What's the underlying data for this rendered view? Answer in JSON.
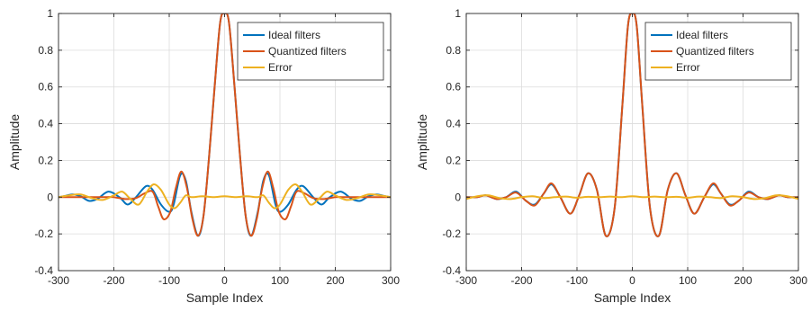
{
  "colors": {
    "ideal": "#0072BD",
    "quantized": "#D95319",
    "error": "#EDB120",
    "grid": "#dcdcdc",
    "axis": "#262626"
  },
  "chart_data": [
    {
      "type": "line",
      "xlabel": "Sample Index",
      "ylabel": "Amplitude",
      "xlim": [
        -300,
        300
      ],
      "ylim": [
        -0.4,
        1
      ],
      "xticks": [
        -300,
        -200,
        -100,
        0,
        100,
        200,
        300
      ],
      "yticks": [
        -0.4,
        -0.2,
        0,
        0.2,
        0.4,
        0.6,
        0.8,
        1
      ],
      "grid": true,
      "legend_position": "top-right",
      "series": [
        {
          "name": "Ideal filters",
          "color": "#0072BD",
          "x": [
            -300,
            -290,
            -275,
            -260,
            -245,
            -230,
            -210,
            -190,
            -175,
            -160,
            -142,
            -130,
            -115,
            -100,
            -92,
            -80,
            -70,
            -60,
            -48,
            -38,
            -28,
            -18,
            -8,
            0,
            8,
            18,
            28,
            38,
            48,
            60,
            70,
            80,
            92,
            100,
            115,
            130,
            142,
            160,
            175,
            190,
            210,
            230,
            245,
            260,
            275,
            290,
            300
          ],
          "y": [
            0.0,
            0.005,
            0.015,
            0.005,
            -0.02,
            -0.01,
            0.03,
            0.0,
            -0.04,
            0.0,
            0.06,
            0.04,
            -0.04,
            -0.08,
            -0.04,
            0.12,
            0.09,
            -0.08,
            -0.21,
            -0.1,
            0.22,
            0.6,
            0.95,
            1.0,
            0.95,
            0.6,
            0.22,
            -0.1,
            -0.21,
            -0.08,
            0.09,
            0.12,
            -0.04,
            -0.08,
            -0.04,
            0.04,
            0.06,
            0.0,
            -0.04,
            0.0,
            0.03,
            -0.01,
            -0.02,
            0.005,
            0.015,
            0.005,
            0.0
          ]
        },
        {
          "name": "Quantized filters",
          "color": "#D95319",
          "x": [
            -300,
            -250,
            -220,
            -200,
            -180,
            -160,
            -145,
            -130,
            -120,
            -110,
            -98,
            -88,
            -78,
            -68,
            -58,
            -48,
            -38,
            -28,
            -18,
            -8,
            0,
            8,
            18,
            28,
            38,
            48,
            58,
            68,
            78,
            88,
            98,
            110,
            120,
            130,
            145,
            160,
            180,
            200,
            220,
            250,
            300
          ],
          "y": [
            0.0,
            0.0,
            0.0,
            0.0,
            -0.01,
            -0.005,
            0.02,
            0.03,
            -0.05,
            -0.12,
            -0.08,
            0.05,
            0.14,
            0.05,
            -0.12,
            -0.21,
            -0.1,
            0.22,
            0.6,
            0.95,
            1.0,
            0.95,
            0.6,
            0.22,
            -0.1,
            -0.21,
            -0.12,
            0.05,
            0.14,
            0.05,
            -0.08,
            -0.12,
            -0.05,
            0.03,
            0.02,
            -0.005,
            -0.01,
            0.0,
            0.0,
            0.0,
            0.0
          ]
        },
        {
          "name": "Error",
          "color": "#EDB120",
          "x": [
            -300,
            -280,
            -260,
            -240,
            -220,
            -200,
            -185,
            -170,
            -155,
            -140,
            -128,
            -115,
            -100,
            -90,
            -80,
            -70,
            -60,
            -40,
            -20,
            0,
            20,
            40,
            60,
            70,
            80,
            90,
            100,
            115,
            128,
            140,
            155,
            170,
            185,
            200,
            220,
            240,
            260,
            280,
            300
          ],
          "y": [
            0.0,
            0.01,
            0.015,
            -0.005,
            -0.015,
            0.01,
            0.03,
            -0.01,
            -0.04,
            0.03,
            0.07,
            0.04,
            -0.04,
            -0.06,
            -0.03,
            0.01,
            0.0,
            0.005,
            0.0,
            0.005,
            0.0,
            0.005,
            0.0,
            0.01,
            -0.03,
            -0.06,
            -0.04,
            0.04,
            0.07,
            0.03,
            -0.04,
            -0.01,
            0.03,
            0.01,
            -0.015,
            -0.005,
            0.015,
            0.01,
            0.0
          ]
        }
      ]
    },
    {
      "type": "line",
      "xlabel": "Sample Index",
      "ylabel": "Amplitude",
      "xlim": [
        -300,
        300
      ],
      "ylim": [
        -0.4,
        1
      ],
      "xticks": [
        -300,
        -200,
        -100,
        0,
        100,
        200,
        300
      ],
      "yticks": [
        -0.4,
        -0.2,
        0,
        0.2,
        0.4,
        0.6,
        0.8,
        1
      ],
      "grid": true,
      "legend_position": "top-right",
      "series": [
        {
          "name": "Ideal filters",
          "color": "#0072BD",
          "x": [
            -300,
            -280,
            -265,
            -245,
            -228,
            -210,
            -192,
            -176,
            -160,
            -146,
            -130,
            -112,
            -96,
            -80,
            -64,
            -48,
            -32,
            -18,
            -8,
            0,
            8,
            18,
            32,
            48,
            64,
            80,
            96,
            112,
            130,
            146,
            160,
            176,
            192,
            210,
            228,
            245,
            265,
            280,
            300
          ],
          "y": [
            0.0,
            0.0,
            0.01,
            -0.01,
            0.0,
            0.03,
            -0.02,
            -0.04,
            0.02,
            0.07,
            0.0,
            -0.09,
            0.01,
            0.13,
            0.04,
            -0.21,
            -0.06,
            0.5,
            0.93,
            1.0,
            0.93,
            0.5,
            -0.06,
            -0.21,
            0.04,
            0.13,
            0.01,
            -0.09,
            0.0,
            0.07,
            0.02,
            -0.04,
            -0.02,
            0.03,
            0.0,
            -0.01,
            0.01,
            0.0,
            0.0
          ]
        },
        {
          "name": "Quantized filters",
          "color": "#D95319",
          "x": [
            -300,
            -280,
            -265,
            -245,
            -228,
            -210,
            -192,
            -176,
            -160,
            -146,
            -130,
            -112,
            -96,
            -80,
            -64,
            -48,
            -32,
            -18,
            -8,
            0,
            8,
            18,
            32,
            48,
            64,
            80,
            96,
            112,
            130,
            146,
            160,
            176,
            192,
            210,
            228,
            245,
            265,
            280,
            300
          ],
          "y": [
            0.0,
            0.0,
            0.01,
            -0.01,
            0.0,
            0.025,
            -0.02,
            -0.045,
            0.02,
            0.075,
            0.0,
            -0.09,
            0.01,
            0.13,
            0.04,
            -0.21,
            -0.06,
            0.5,
            0.93,
            1.0,
            0.93,
            0.5,
            -0.06,
            -0.21,
            0.04,
            0.13,
            0.01,
            -0.09,
            0.0,
            0.075,
            0.02,
            -0.045,
            -0.02,
            0.025,
            0.0,
            -0.01,
            0.01,
            0.0,
            0.0
          ]
        },
        {
          "name": "Error",
          "color": "#EDB120",
          "x": [
            -300,
            -280,
            -260,
            -240,
            -220,
            -200,
            -180,
            -160,
            -140,
            -120,
            -100,
            -80,
            -60,
            -40,
            -20,
            0,
            20,
            40,
            60,
            80,
            100,
            120,
            140,
            160,
            180,
            200,
            220,
            240,
            260,
            280,
            300
          ],
          "y": [
            -0.01,
            0.005,
            0.01,
            -0.005,
            -0.01,
            0.0,
            0.005,
            -0.005,
            0.0,
            0.003,
            -0.003,
            0.002,
            0.0,
            0.003,
            0.0,
            0.005,
            0.0,
            0.003,
            0.0,
            0.002,
            -0.003,
            0.003,
            0.0,
            -0.005,
            0.005,
            0.0,
            -0.01,
            -0.005,
            0.01,
            0.005,
            -0.01
          ]
        }
      ]
    }
  ]
}
